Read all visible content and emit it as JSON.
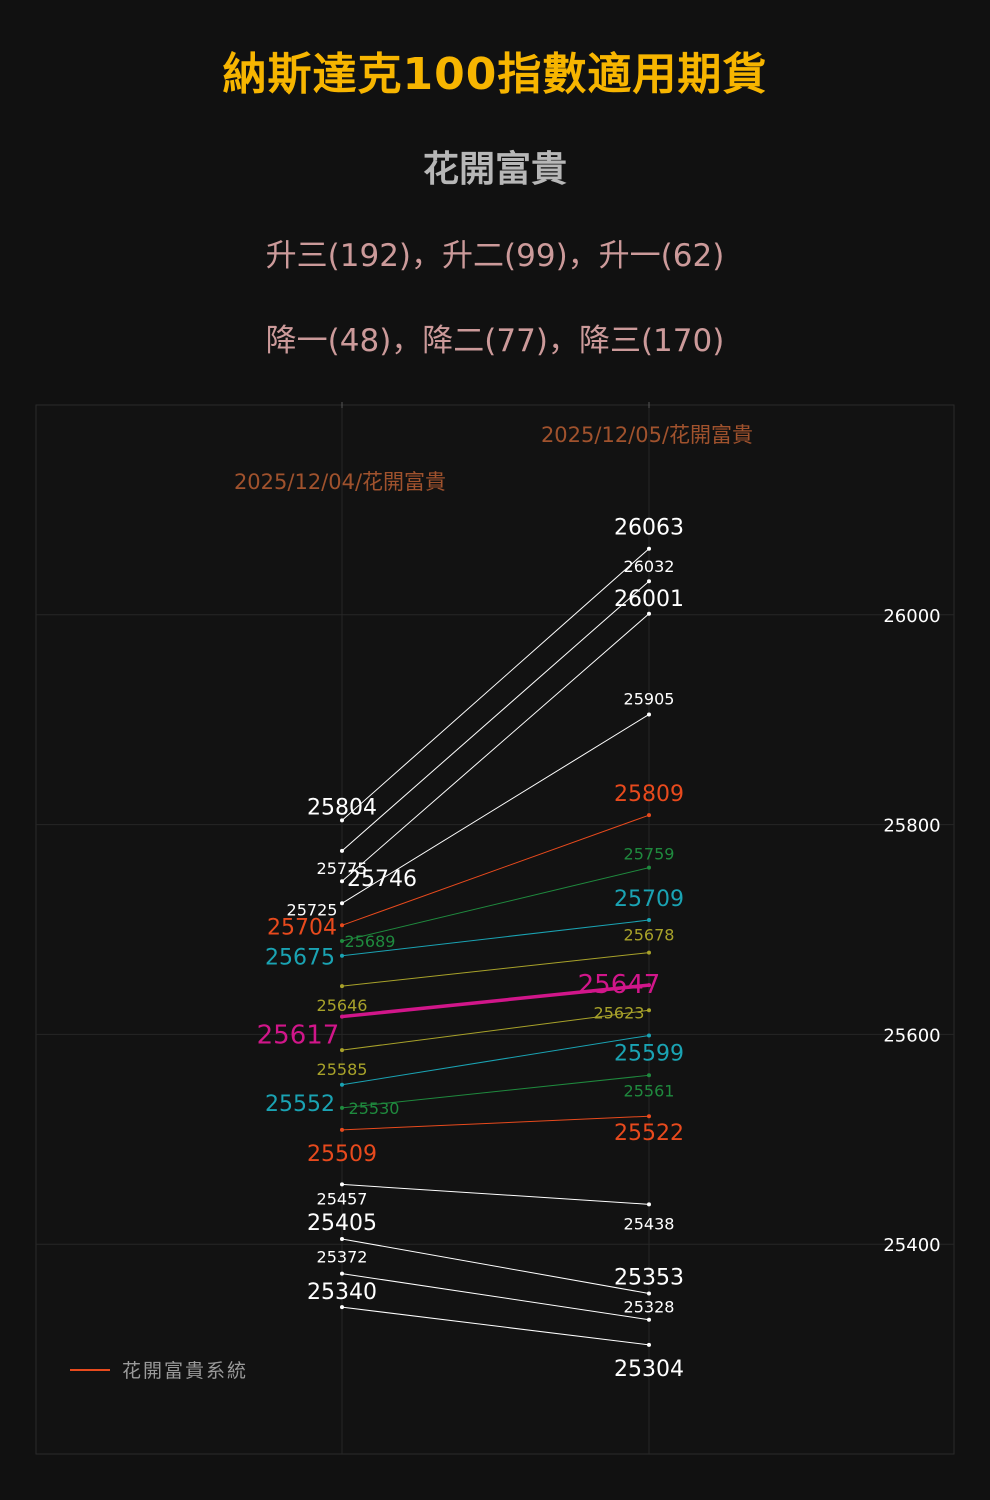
{
  "title": "納斯達克100指數適用期貨",
  "subtitle": "花開富貴",
  "levels_up_text": "升三(192)，升二(99)，升一(62)",
  "levels_down_text": "降一(48)，降二(77)，降三(170)",
  "legend_label": "花開富貴系統",
  "colors": {
    "background": "#111111",
    "title": "#f7b500",
    "date_label": "#a0522d",
    "white": "#ffffff",
    "red": "#e84a1d",
    "green": "#1f8a3e",
    "cyan": "#1aa3b3",
    "olive": "#a8a22a",
    "magenta": "#d1168a"
  },
  "chart_data": {
    "type": "line",
    "x": [
      "2025/12/04/花開富貴",
      "2025/12/05/花開富貴"
    ],
    "ylim": [
      25200,
      26200
    ],
    "yticks": [
      25400,
      25600,
      25800,
      26000
    ],
    "grid": true,
    "legend": "bottom-left",
    "series": [
      {
        "color": "white",
        "values": [
          25804,
          26063
        ],
        "start_label": "25804",
        "end_label": "26063"
      },
      {
        "color": "white",
        "values": [
          25775,
          26032
        ],
        "start_label": "25775",
        "end_label": "26032"
      },
      {
        "color": "white",
        "values": [
          25746,
          26001
        ],
        "start_label": "25746",
        "end_label": "26001"
      },
      {
        "color": "white",
        "values": [
          25725,
          25905
        ],
        "start_label": "25725",
        "end_label": "25905"
      },
      {
        "color": "red",
        "values": [
          25704,
          25809
        ],
        "start_label": "25704",
        "end_label": "25809"
      },
      {
        "color": "green",
        "values": [
          25689,
          25759
        ],
        "start_label": "25689",
        "end_label": "25759"
      },
      {
        "color": "cyan",
        "values": [
          25675,
          25709
        ],
        "start_label": "25675",
        "end_label": "25709"
      },
      {
        "color": "olive",
        "values": [
          25646,
          25678
        ],
        "start_label": "25646",
        "end_label": "25678"
      },
      {
        "color": "magenta",
        "values": [
          25617,
          25647
        ],
        "start_label": "25617",
        "end_label": "25647"
      },
      {
        "color": "olive",
        "values": [
          25585,
          25623
        ],
        "start_label": "25585",
        "end_label": "25623"
      },
      {
        "color": "cyan",
        "values": [
          25552,
          25599
        ],
        "start_label": "25552",
        "end_label": "25599"
      },
      {
        "color": "green",
        "values": [
          25530,
          25561
        ],
        "start_label": "25530",
        "end_label": "25561"
      },
      {
        "color": "red",
        "values": [
          25509,
          25522
        ],
        "start_label": "25509",
        "end_label": "25522"
      },
      {
        "color": "white",
        "values": [
          25457,
          25438
        ],
        "start_label": "25457",
        "end_label": "25438"
      },
      {
        "color": "white",
        "values": [
          25405,
          25353
        ],
        "start_label": "25405",
        "end_label": "25353"
      },
      {
        "color": "white",
        "values": [
          25372,
          25328
        ],
        "start_label": "25372",
        "end_label": "25328"
      },
      {
        "color": "white",
        "values": [
          25340,
          25304
        ],
        "start_label": "25340",
        "end_label": "25304"
      }
    ]
  }
}
